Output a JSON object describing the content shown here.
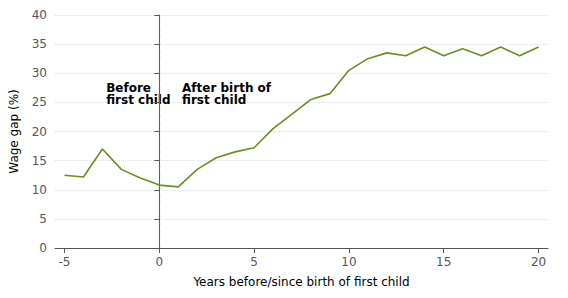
{
  "chart_data": {
    "type": "line",
    "x": [
      -5,
      -4,
      -3,
      -2,
      -1,
      0,
      1,
      2,
      3,
      4,
      5,
      6,
      7,
      8,
      9,
      10,
      11,
      12,
      13,
      14,
      15,
      16,
      17,
      18,
      19,
      20
    ],
    "values": [
      12.5,
      12.2,
      17.0,
      13.5,
      12.0,
      10.8,
      10.5,
      13.5,
      15.5,
      16.5,
      17.2,
      20.5,
      23.0,
      25.5,
      26.5,
      30.5,
      32.5,
      33.5,
      33.0,
      34.5,
      33.0,
      34.2,
      33.0,
      34.5,
      33.0,
      34.5
    ],
    "color": "#6b8e23",
    "xlabel": "Years before/since birth of first child",
    "ylabel": "Wage gap (%)",
    "xlim": [
      -5.5,
      20.5
    ],
    "ylim": [
      0,
      40
    ],
    "xticks": [
      -5,
      0,
      5,
      10,
      15,
      20
    ],
    "yticks": [
      0,
      5,
      10,
      15,
      20,
      25,
      30,
      35,
      40
    ],
    "grid": true,
    "vlines": [
      {
        "x": 0,
        "color": "#666666",
        "line_style": "dashed"
      }
    ],
    "annotations": [
      {
        "lines": [
          "Before",
          "first child"
        ],
        "x": -2.8,
        "y": 26.5
      },
      {
        "lines": [
          "After birth of",
          "first child"
        ],
        "x": 1.2,
        "y": 26.5
      }
    ]
  }
}
